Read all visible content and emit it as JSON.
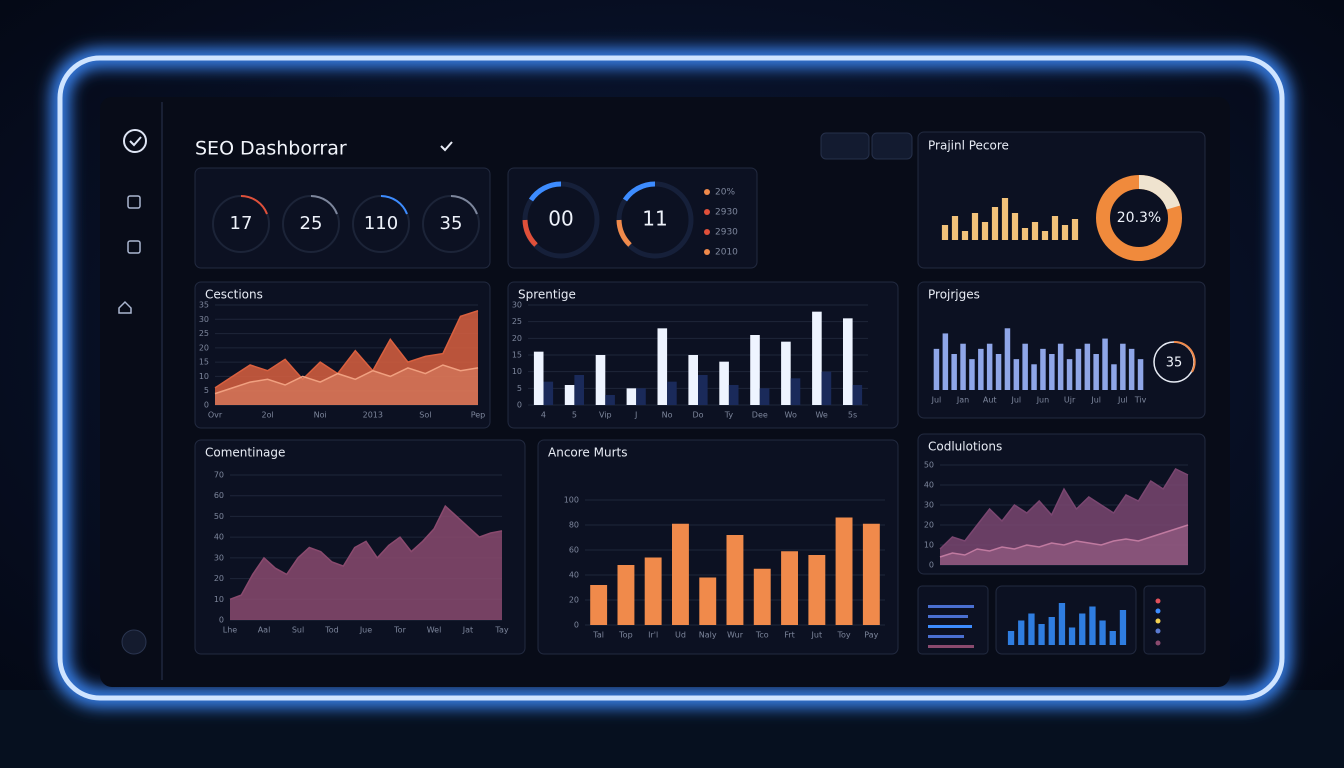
{
  "header": {
    "title": "SEO Dashborrar"
  },
  "kpis": [
    17,
    25,
    110,
    35
  ],
  "gauges": [
    "00",
    "11"
  ],
  "gauge_legend": [
    "20%",
    "2930",
    "2930",
    "2010"
  ],
  "chart_data": [
    {
      "type": "area",
      "title": "Cesctions",
      "categories": [
        "Ovr",
        null,
        null,
        "2ol",
        null,
        null,
        "Noi",
        null,
        null,
        "2013",
        null,
        null,
        "Sol",
        null,
        null,
        "Pep"
      ],
      "series": [
        {
          "color": "#d9603f",
          "values": [
            6,
            10,
            14,
            12,
            16,
            9,
            15,
            11,
            19,
            12,
            23,
            15,
            17,
            18,
            31,
            33
          ]
        },
        {
          "color": "#f0a080",
          "values": [
            4,
            6,
            8,
            9,
            7,
            10,
            8,
            11,
            9,
            12,
            10,
            13,
            11,
            14,
            12,
            13
          ]
        }
      ],
      "ylim": [
        0,
        35
      ],
      "yticks": [
        0,
        5,
        10,
        15,
        20,
        25,
        30,
        35
      ],
      "grid": true
    },
    {
      "type": "bar",
      "title": "Sprentige",
      "categories": [
        "4",
        "5",
        "Vip",
        "J",
        "No",
        "Do",
        "Ty",
        "Dee",
        "Wo",
        "We",
        "5s"
      ],
      "series": [
        {
          "color": "#eef4ff",
          "values": [
            16,
            6,
            15,
            5,
            23,
            15,
            13,
            21,
            19,
            28,
            26
          ]
        },
        {
          "color": "#1a2a5a",
          "values": [
            7,
            9,
            3,
            5,
            7,
            9,
            6,
            5,
            8,
            10,
            6
          ]
        }
      ],
      "ylim": [
        0,
        30
      ],
      "yticks": [
        0,
        5,
        10,
        15,
        20,
        25,
        30
      ],
      "grid": true
    },
    {
      "type": "bar",
      "title": "Projrjges",
      "categories": [
        "Jul",
        null,
        null,
        "Jan",
        null,
        null,
        "Aut",
        null,
        null,
        "Jul",
        null,
        null,
        "Jun",
        null,
        null,
        "Ujr",
        null,
        null,
        "Jul",
        null,
        null,
        "Jul",
        null,
        "Tiv"
      ],
      "series": [
        {
          "color": "#8fa6e8",
          "values": [
            8,
            11,
            7,
            9,
            6,
            8,
            9,
            7,
            12,
            6,
            9,
            5,
            8,
            7,
            9,
            6,
            8,
            9,
            7,
            10,
            5,
            9,
            8,
            6
          ]
        }
      ],
      "ylim": [
        0,
        14
      ],
      "grid": false,
      "annotation": "35"
    },
    {
      "type": "area",
      "title": "Comentinage",
      "categories": [
        "Lhe",
        null,
        null,
        "Aal",
        null,
        null,
        "Sul",
        null,
        null,
        "Tod",
        null,
        null,
        "Jue",
        null,
        null,
        "Tor",
        null,
        null,
        "Wel",
        null,
        null,
        "Jat",
        null,
        null,
        "Tay"
      ],
      "series": [
        {
          "color": "#8a4a6e",
          "values": [
            10,
            12,
            22,
            30,
            25,
            22,
            30,
            35,
            33,
            28,
            26,
            35,
            38,
            30,
            36,
            40,
            33,
            38,
            44,
            55,
            50,
            45,
            40,
            42,
            43
          ]
        }
      ],
      "ylim": [
        0,
        70
      ],
      "yticks": [
        0,
        10,
        20,
        30,
        40,
        50,
        60,
        70
      ],
      "grid": true
    },
    {
      "type": "bar",
      "title": "Ancore Murts",
      "categories": [
        "Tal",
        "Top",
        "Ir'l",
        "Ud",
        "Naly",
        "Wur",
        "Tco",
        "Frt",
        "Jut",
        "Toy",
        "Pay"
      ],
      "series": [
        {
          "color": "#f08a4b",
          "values": [
            32,
            48,
            54,
            81,
            38,
            72,
            45,
            59,
            56,
            86,
            81
          ]
        }
      ],
      "ylim": [
        0,
        120
      ],
      "yticks": [
        0,
        20,
        40,
        60,
        80,
        100
      ],
      "grid": true
    },
    {
      "type": "area",
      "title": "Codlulotions",
      "series": [
        {
          "color": "#7a4670",
          "values": [
            8,
            14,
            12,
            20,
            28,
            22,
            30,
            26,
            32,
            25,
            38,
            28,
            34,
            30,
            26,
            35,
            32,
            42,
            38,
            48,
            45
          ]
        },
        {
          "color": "#c07aa0",
          "values": [
            4,
            6,
            5,
            8,
            7,
            9,
            8,
            10,
            9,
            11,
            10,
            12,
            11,
            10,
            12,
            13,
            12,
            14,
            16,
            18,
            20
          ]
        }
      ],
      "ylim": [
        0,
        50
      ],
      "yticks": [
        0,
        10,
        20,
        30,
        40,
        50
      ],
      "grid": true
    },
    {
      "type": "pie",
      "title": "Prajinl Pecore",
      "values": [
        20.3
      ],
      "value_labels": [
        "20.3%"
      ],
      "color": "#efe3cf"
    },
    {
      "type": "bar",
      "series": [
        {
          "color": "#f2c27a",
          "values": [
            5,
            8,
            3,
            9,
            6,
            11,
            14,
            9,
            4,
            6,
            3,
            8,
            5,
            7
          ]
        }
      ],
      "ylim": [
        0,
        16
      ],
      "grid": false
    },
    {
      "type": "bar",
      "series": [
        {
          "color": "#2f7de0",
          "values": [
            4,
            7,
            9,
            6,
            8,
            12,
            5,
            9,
            11,
            7,
            4,
            10
          ]
        }
      ],
      "ylim": [
        0,
        14
      ],
      "grid": false
    }
  ]
}
